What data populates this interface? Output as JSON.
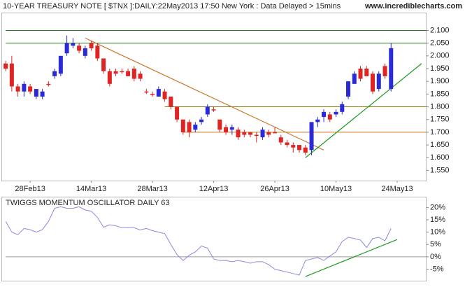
{
  "header": {
    "title": "10-YEAR TREASURY NOTE [ $TNX ]:DAILY:22May2013 17:50 New York : Data Delayed > 15mins",
    "site": "www.incrediblecharts.com"
  },
  "chart_data": [
    {
      "type": "candlestick",
      "categories": [
        null,
        null,
        null,
        null,
        null,
        null,
        null,
        null,
        null,
        null,
        null,
        null,
        null,
        null,
        null,
        null,
        null,
        null,
        null,
        null,
        null,
        null,
        null,
        null,
        null,
        null,
        null,
        null,
        null,
        null,
        null,
        null,
        null,
        null,
        null,
        null,
        null,
        null,
        null,
        null,
        null,
        null,
        null,
        null,
        null,
        null,
        null,
        null,
        null,
        null,
        null,
        null,
        null,
        null,
        null,
        null,
        null,
        null,
        null,
        null,
        null,
        null,
        null,
        null
      ],
      "open": [
        1.97,
        1.97,
        1.88,
        1.86,
        1.88,
        1.84,
        1.84,
        1.89,
        1.92,
        1.93,
        2.01,
        2.04,
        2.04,
        2.0,
        2.05,
        2.04,
        1.99,
        1.94,
        1.94,
        1.94,
        1.94,
        1.95,
        1.93,
        1.86,
        1.85,
        1.84,
        1.86,
        1.84,
        1.8,
        1.75,
        1.74,
        1.71,
        1.74,
        1.77,
        1.79,
        1.75,
        1.72,
        1.71,
        1.71,
        1.7,
        1.7,
        1.69,
        1.68,
        1.7,
        1.7,
        1.68,
        1.66,
        1.65,
        1.65,
        1.64,
        1.63,
        1.74,
        1.76,
        1.77,
        1.77,
        1.78,
        1.84,
        1.89,
        1.95,
        1.95,
        1.93,
        1.87,
        1.96,
        1.87
      ],
      "high": [
        1.98,
        2.0,
        1.89,
        1.9,
        1.89,
        1.87,
        1.87,
        1.9,
        1.95,
        2.0,
        2.08,
        2.07,
        2.05,
        2.04,
        2.06,
        2.05,
        1.99,
        1.95,
        1.95,
        1.95,
        1.95,
        1.96,
        1.94,
        1.87,
        1.86,
        1.88,
        1.87,
        1.84,
        1.8,
        1.75,
        1.75,
        1.74,
        1.76,
        1.81,
        1.8,
        1.75,
        1.73,
        1.73,
        1.72,
        1.71,
        1.7,
        1.7,
        1.72,
        1.71,
        1.72,
        1.69,
        1.67,
        1.66,
        1.65,
        1.65,
        1.74,
        1.76,
        1.79,
        1.78,
        1.79,
        1.82,
        1.9,
        1.94,
        1.96,
        1.96,
        1.94,
        1.94,
        1.97,
        2.05
      ],
      "low": [
        1.94,
        1.86,
        1.84,
        1.84,
        1.85,
        1.83,
        1.83,
        1.88,
        1.91,
        1.92,
        2.0,
        2.03,
        2.01,
        1.99,
        2.02,
        1.98,
        1.93,
        1.88,
        1.92,
        1.93,
        1.92,
        1.9,
        1.9,
        1.85,
        1.84,
        1.84,
        1.82,
        1.79,
        1.74,
        1.69,
        1.68,
        1.7,
        1.73,
        1.76,
        1.78,
        1.7,
        1.69,
        1.69,
        1.67,
        1.68,
        1.68,
        1.66,
        1.67,
        1.68,
        1.7,
        1.65,
        1.64,
        1.62,
        1.62,
        1.61,
        1.61,
        1.72,
        1.74,
        1.74,
        1.76,
        1.77,
        1.83,
        1.89,
        1.9,
        1.92,
        1.85,
        1.86,
        1.91,
        1.86
      ],
      "close": [
        1.95,
        1.88,
        1.86,
        1.89,
        1.86,
        1.87,
        1.86,
        1.89,
        1.94,
        2.0,
        2.05,
        2.05,
        2.02,
        2.03,
        2.03,
        1.99,
        1.94,
        1.89,
        1.93,
        1.94,
        1.92,
        1.91,
        1.91,
        1.86,
        1.85,
        1.87,
        1.83,
        1.8,
        1.75,
        1.7,
        1.7,
        1.73,
        1.75,
        1.8,
        1.79,
        1.71,
        1.7,
        1.72,
        1.68,
        1.69,
        1.69,
        1.69,
        1.71,
        1.69,
        1.7,
        1.66,
        1.65,
        1.64,
        1.63,
        1.62,
        1.74,
        1.75,
        1.78,
        1.75,
        1.78,
        1.81,
        1.9,
        1.93,
        1.91,
        1.92,
        1.86,
        1.93,
        1.92,
        2.03
      ],
      "up_color": "#2a2ad8",
      "down_color": "#e02424",
      "xlim": [
        -0.7,
        68.8
      ],
      "xticks": [
        {
          "value": 4,
          "label": "28Feb13"
        },
        {
          "value": 14,
          "label": "14Mar13"
        },
        {
          "value": 24,
          "label": "28Mar13"
        },
        {
          "value": 34,
          "label": "12Apr13"
        },
        {
          "value": 44,
          "label": "26Apr13"
        },
        {
          "value": 54,
          "label": "10May13"
        },
        {
          "value": 64,
          "label": "24May13"
        }
      ],
      "ylim": [
        1.51,
        2.17
      ],
      "yticks": [
        {
          "value": 1.55,
          "label": "1.550"
        },
        {
          "value": 1.6,
          "label": "1.600"
        },
        {
          "value": 1.65,
          "label": "1.650"
        },
        {
          "value": 1.7,
          "label": "1.700"
        },
        {
          "value": 1.75,
          "label": "1.750"
        },
        {
          "value": 1.8,
          "label": "1.800"
        },
        {
          "value": 1.85,
          "label": "1.850"
        },
        {
          "value": 1.9,
          "label": "1.900"
        },
        {
          "value": 1.95,
          "label": "1.950"
        },
        {
          "value": 2.0,
          "label": "2.000"
        },
        {
          "value": 2.05,
          "label": "2.050"
        },
        {
          "value": 2.1,
          "label": "2.100"
        }
      ],
      "hlines": [
        {
          "value": 2.1,
          "from": 0,
          "color": "#1d7a1d"
        },
        {
          "value": 2.05,
          "from": 0,
          "color": "#1d7a1d"
        },
        {
          "value": 1.8,
          "from": 26,
          "color": "#9a7a10"
        },
        {
          "value": 1.7,
          "from": 29,
          "color": "#c8781e"
        }
      ],
      "trendlines": [
        {
          "from": [
            13,
            2.07
          ],
          "to": [
            52,
            1.63
          ],
          "color": "#c87828"
        },
        {
          "from": [
            49,
            1.6
          ],
          "to": [
            68,
            1.97
          ],
          "color": "#1e9a1e"
        }
      ]
    },
    {
      "type": "line",
      "title": "TWIGGS MOMENTUM OSCILLATOR DAILY 63",
      "values": [
        14.4,
        10,
        9,
        11.5,
        11,
        10,
        11,
        14.4,
        19.7,
        20.3,
        19.7,
        19.7,
        20.3,
        19,
        18.5,
        16,
        12,
        13,
        12.6,
        11.8,
        12,
        11.8,
        10.9,
        11.5,
        10.6,
        10,
        9.4,
        5,
        0.9,
        -1.5,
        0.6,
        2,
        4.4,
        3.5,
        -0.9,
        -1.5,
        -1.5,
        -2,
        -1.5,
        -2,
        -2.6,
        -2,
        -2,
        -3.2,
        -5,
        -5.6,
        -6.2,
        -6.8,
        -7.4,
        -1.5,
        -0.9,
        -0.3,
        -1.5,
        0.3,
        2,
        6.2,
        7.9,
        7.4,
        6.8,
        3.8,
        7.4,
        7.9,
        6.5,
        11.5
      ],
      "color": "#8a8ae0",
      "xlim": [
        -0.7,
        68.8
      ],
      "ylim": [
        -9.7,
        24.1
      ],
      "yticks": [
        {
          "value": -5,
          "label": "-5%"
        },
        {
          "value": 0,
          "label": "0%"
        },
        {
          "value": 5,
          "label": "5%"
        },
        {
          "value": 10,
          "label": "10%"
        },
        {
          "value": 15,
          "label": "15%"
        },
        {
          "value": 20,
          "label": "20%"
        }
      ],
      "hlines": [
        {
          "value": 0,
          "from": 0,
          "color": "#9a9a9a"
        }
      ],
      "trendlines": [
        {
          "from": [
            49,
            -8
          ],
          "to": [
            64,
            7
          ],
          "color": "#1e9a1e"
        }
      ]
    }
  ]
}
